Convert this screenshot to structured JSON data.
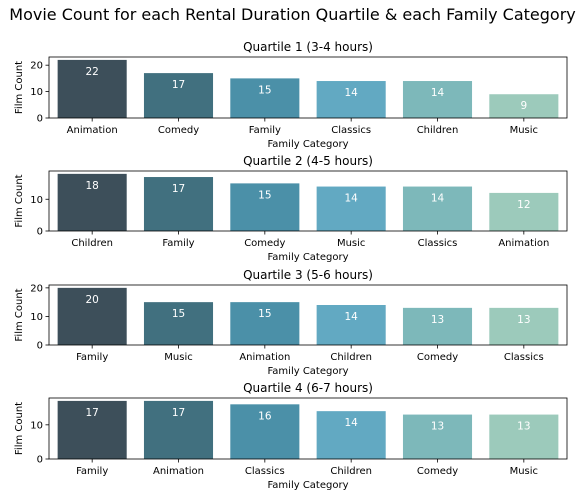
{
  "suptitle": "Movie Count for each Rental Duration Quartile & each Family Category",
  "palette": [
    "#3d4f5a",
    "#41707f",
    "#4b90a8",
    "#62a9c2",
    "#7db8ba",
    "#9ccabb"
  ],
  "chart_data": [
    {
      "type": "bar",
      "title": "Quartile 1 (3-4 hours)",
      "xlabel": "Family Category",
      "ylabel": "Film Count",
      "categories": [
        "Animation",
        "Comedy",
        "Family",
        "Classics",
        "Children",
        "Music"
      ],
      "values": [
        22,
        17,
        15,
        14,
        14,
        9
      ],
      "ylim": [
        0,
        23.1
      ],
      "yticks": [
        0,
        10,
        20
      ]
    },
    {
      "type": "bar",
      "title": "Quartile 2 (4-5 hours)",
      "xlabel": "Family Category",
      "ylabel": "Film Count",
      "categories": [
        "Children",
        "Family",
        "Comedy",
        "Music",
        "Classics",
        "Animation"
      ],
      "values": [
        18,
        17,
        15,
        14,
        14,
        12
      ],
      "ylim": [
        0,
        18.9
      ],
      "yticks": [
        0,
        10
      ]
    },
    {
      "type": "bar",
      "title": "Quartile 3 (5-6 hours)",
      "xlabel": "Family Category",
      "ylabel": "Film Count",
      "categories": [
        "Family",
        "Music",
        "Animation",
        "Children",
        "Comedy",
        "Classics"
      ],
      "values": [
        20,
        15,
        15,
        14,
        13,
        13
      ],
      "ylim": [
        0,
        21
      ],
      "yticks": [
        0,
        10,
        20
      ]
    },
    {
      "type": "bar",
      "title": "Quartile 4 (6-7 hours)",
      "xlabel": "Family Category",
      "ylabel": "Film Count",
      "categories": [
        "Family",
        "Animation",
        "Classics",
        "Children",
        "Comedy",
        "Music"
      ],
      "values": [
        17,
        17,
        16,
        14,
        13,
        13
      ],
      "ylim": [
        0,
        17.85
      ],
      "yticks": [
        0,
        10
      ]
    }
  ]
}
